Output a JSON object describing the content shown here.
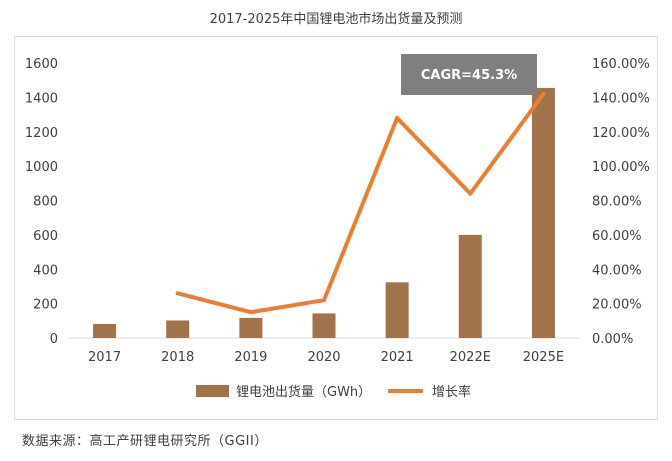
{
  "chart_data": {
    "type": "bar+line",
    "title": "2017-2025年中国锂电池市场出货量及预测",
    "categories": [
      "2017",
      "2018",
      "2019",
      "2020",
      "2021",
      "2022E",
      "2025E"
    ],
    "series": [
      {
        "name": "锂电池出货量（GWh）",
        "type": "bar",
        "axis": "left",
        "color": "#a0734a",
        "values": [
          82,
          102,
          117,
          143,
          324,
          600,
          1455
        ]
      },
      {
        "name": "增长率",
        "type": "line",
        "axis": "right",
        "color": "#ed7d31",
        "values": [
          null,
          26,
          15,
          22,
          128,
          84,
          142
        ]
      }
    ],
    "y_left": {
      "min": 0,
      "max": 1600,
      "ticks": [
        "0",
        "200",
        "400",
        "600",
        "800",
        "1000",
        "1200",
        "1400",
        "1600"
      ]
    },
    "y_right": {
      "min": 0,
      "max": 160,
      "ticks": [
        "0.00%",
        "20.00%",
        "40.00%",
        "60.00%",
        "80.00%",
        "100.00%",
        "120.00%",
        "140.00%",
        "160.00%"
      ]
    },
    "annotation": {
      "text": "CAGR=45.3%",
      "color": "#7f7f7f"
    },
    "legend": {
      "placement": "bottom"
    },
    "grid": false
  },
  "source_note": "数据来源：高工产研锂电研究所（GGII）"
}
